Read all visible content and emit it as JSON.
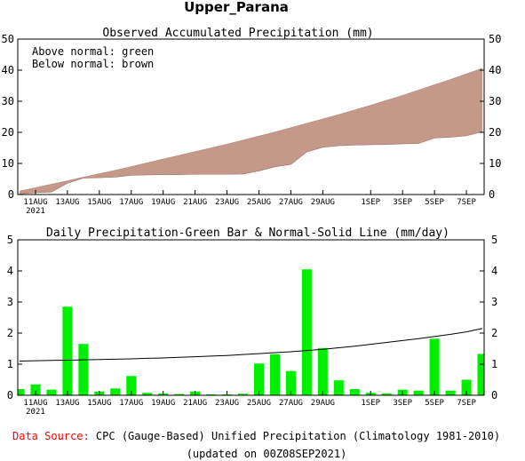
{
  "title": "Upper_Parana",
  "colors": {
    "above_normal": "#00dd00",
    "below_normal": "#c4998a",
    "bar": "#00ee00",
    "normal_line": "#000000",
    "source_label": "#ff0000"
  },
  "footer": {
    "source_label": "Data Source:",
    "source_text": " CPC (Gauge-Based) Unified Precipitation (Climatology 1981-2010)",
    "updated": "(updated on 00Z08SEP2021)"
  },
  "chart_data": [
    {
      "type": "area",
      "title": "Observed Accumulated Precipitation (mm)",
      "notes": [
        "Above normal: green",
        "Below normal: brown"
      ],
      "x": [
        "10AUG",
        "11AUG",
        "12AUG",
        "13AUG",
        "14AUG",
        "15AUG",
        "16AUG",
        "17AUG",
        "18AUG",
        "19AUG",
        "20AUG",
        "21AUG",
        "22AUG",
        "23AUG",
        "24AUG",
        "25AUG",
        "26AUG",
        "27AUG",
        "28AUG",
        "29AUG",
        "30AUG",
        "31AUG",
        "1SEP",
        "2SEP",
        "3SEP",
        "4SEP",
        "5SEP",
        "6SEP",
        "7SEP",
        "8SEP"
      ],
      "series": [
        {
          "values": [
            0.2,
            0.6,
            0.8,
            3.6,
            5.3,
            5.4,
            5.6,
            6.2,
            6.3,
            6.4,
            6.4,
            6.5,
            6.5,
            6.5,
            6.6,
            7.6,
            8.9,
            9.7,
            13.7,
            15.2,
            15.7,
            15.9,
            16.0,
            16.1,
            16.3,
            16.4,
            18.2,
            18.4,
            18.9,
            20.2
          ]
        },
        {
          "values": [
            1.1,
            2.2,
            3.3,
            4.4,
            5.6,
            6.7,
            7.8,
            9.0,
            10.2,
            11.4,
            12.6,
            13.8,
            15.0,
            16.2,
            17.5,
            18.8,
            20.1,
            21.5,
            22.9,
            24.3,
            25.7,
            27.2,
            28.7,
            30.3,
            31.9,
            33.6,
            35.3,
            37.0,
            38.8,
            40.6
          ]
        }
      ],
      "ylim": [
        0,
        50
      ],
      "yticks": [
        0,
        10,
        20,
        30,
        40,
        50
      ],
      "xtick_labels": [
        "11AUG",
        "13AUG",
        "15AUG",
        "17AUG",
        "19AUG",
        "21AUG",
        "23AUG",
        "25AUG",
        "27AUG",
        "29AUG",
        "1SEP",
        "3SEP",
        "5SEP",
        "7SEP"
      ],
      "year_label": "2021",
      "grid": false
    },
    {
      "type": "bar",
      "title": "Daily Precipitation-Green Bar & Normal-Solid Line (mm/day)",
      "x": [
        "10AUG",
        "11AUG",
        "12AUG",
        "13AUG",
        "14AUG",
        "15AUG",
        "16AUG",
        "17AUG",
        "18AUG",
        "19AUG",
        "20AUG",
        "21AUG",
        "22AUG",
        "23AUG",
        "24AUG",
        "25AUG",
        "26AUG",
        "27AUG",
        "28AUG",
        "29AUG",
        "30AUG",
        "31AUG",
        "1SEP",
        "2SEP",
        "3SEP",
        "4SEP",
        "5SEP",
        "6SEP",
        "7SEP",
        "8SEP"
      ],
      "series": [
        {
          "values": [
            0.2,
            0.35,
            0.18,
            2.85,
            1.65,
            0.12,
            0.22,
            0.62,
            0.08,
            0.06,
            0.04,
            0.12,
            0.03,
            0.03,
            0.05,
            1.02,
            1.32,
            0.78,
            4.05,
            1.52,
            0.48,
            0.2,
            0.08,
            0.06,
            0.18,
            0.15,
            1.82,
            0.15,
            0.5,
            1.33
          ]
        },
        {
          "values": [
            1.1,
            1.11,
            1.12,
            1.13,
            1.14,
            1.15,
            1.16,
            1.17,
            1.19,
            1.2,
            1.22,
            1.24,
            1.26,
            1.28,
            1.31,
            1.34,
            1.37,
            1.4,
            1.44,
            1.48,
            1.53,
            1.58,
            1.64,
            1.7,
            1.76,
            1.82,
            1.89,
            1.96,
            2.04,
            2.15
          ]
        }
      ],
      "ylim": [
        0,
        5
      ],
      "yticks": [
        0,
        1,
        2,
        3,
        4,
        5
      ],
      "xtick_labels": [
        "11AUG",
        "13AUG",
        "15AUG",
        "17AUG",
        "19AUG",
        "21AUG",
        "23AUG",
        "25AUG",
        "27AUG",
        "29AUG",
        "1SEP",
        "3SEP",
        "5SEP",
        "7SEP"
      ],
      "year_label": "2021",
      "grid": false
    }
  ]
}
